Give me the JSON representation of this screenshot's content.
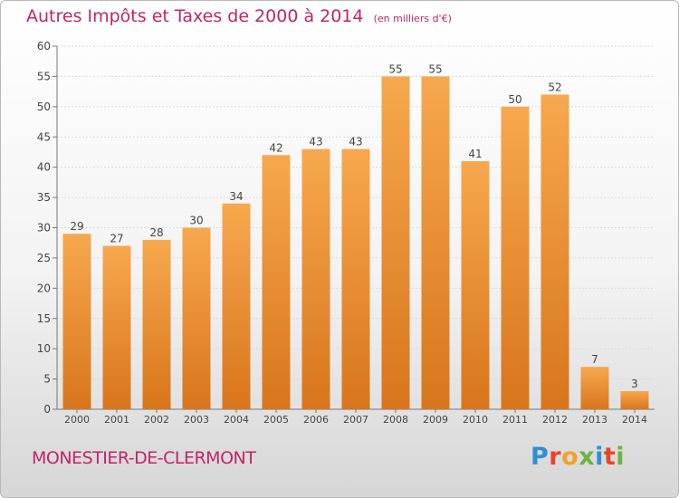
{
  "chart_data": {
    "type": "bar",
    "title": "Autres Impôts et Taxes de 2000 à 2014",
    "subtitle": "(en milliers d'€)",
    "categories": [
      "2000",
      "2001",
      "2002",
      "2003",
      "2004",
      "2005",
      "2006",
      "2007",
      "2008",
      "2009",
      "2010",
      "2011",
      "2012",
      "2013",
      "2014"
    ],
    "values": [
      29,
      27,
      28,
      30,
      34,
      42,
      43,
      43,
      55,
      55,
      41,
      50,
      52,
      7,
      3
    ],
    "ylim": [
      0,
      60
    ],
    "yticks": [
      0,
      5,
      10,
      15,
      20,
      25,
      30,
      35,
      40,
      45,
      50,
      55,
      60
    ],
    "grid": true,
    "colors": {
      "bar_light": "#f7a84e",
      "bar_dark": "#d8751c",
      "accent": "#c0246b",
      "label": "#444444"
    }
  },
  "footer": {
    "commune": "MONESTIER-DE-CLERMONT",
    "logo_letters": [
      {
        "ch": "P",
        "color": "#2e8fd6"
      },
      {
        "ch": "r",
        "color": "#e8442c"
      },
      {
        "ch": "o",
        "color": "#f0a22a"
      },
      {
        "ch": "x",
        "color": "#6db33f"
      },
      {
        "ch": "i",
        "color": "#2e8fd6"
      },
      {
        "ch": "t",
        "color": "#e8442c"
      },
      {
        "ch": "i",
        "color": "#6db33f"
      }
    ]
  }
}
